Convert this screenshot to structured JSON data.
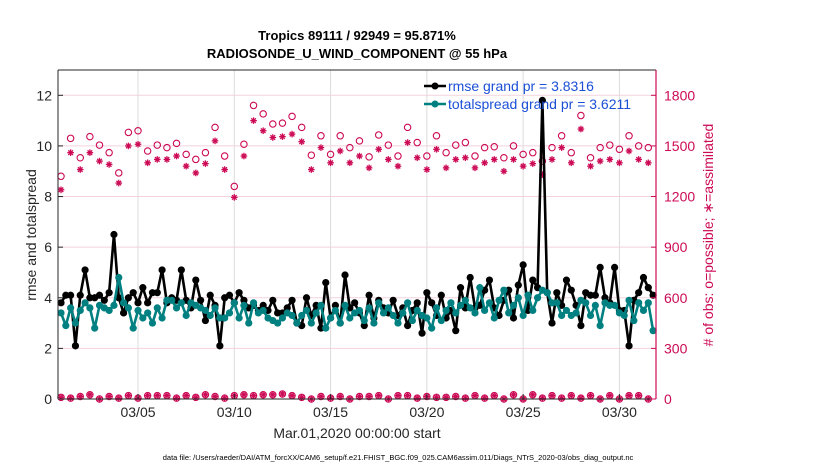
{
  "chart_data": {
    "type": "line",
    "title": "Tropics 89111 / 92949 = 95.871%",
    "subtitle": "RADIOSONDE_U_WIND_COMPONENT @ 55 hPa",
    "xlabel": "Mar.01,2020 00:00:00 start",
    "ylabel": "rmse and totalspread",
    "y2label": "# of obs: o=possible; ∗=assimilated",
    "footer": "data file: /Users/raeder/DAI/ATM_forcXX/CAM6_setup/f.e21.FHIST_BGC.f09_025.CAM6assim.011/Diags_NTrS_2020-03/obs_diag_output.nc",
    "x_start": "2020-03-01T00:00:00",
    "x_step_hours": 6,
    "xlim_days": [
      0,
      30.9
    ],
    "x_ticks": [
      {
        "day": 4,
        "label": "03/05"
      },
      {
        "day": 9,
        "label": "03/10"
      },
      {
        "day": 14,
        "label": "03/15"
      },
      {
        "day": 19,
        "label": "03/20"
      },
      {
        "day": 24,
        "label": "03/25"
      },
      {
        "day": 29,
        "label": "03/30"
      }
    ],
    "ylim": [
      0,
      13
    ],
    "y_ticks": [
      0,
      2,
      4,
      6,
      8,
      10,
      12
    ],
    "y2lim": [
      0,
      1950
    ],
    "y2_ticks": [
      0,
      300,
      600,
      900,
      1200,
      1500,
      1800
    ],
    "grid": true,
    "legend_position": "top-right",
    "legend": [
      {
        "name": "rmse grand pr = 3.8316",
        "color": "#000000"
      },
      {
        "name": "totalspread grand pr = 3.6211",
        "color": "#008080"
      }
    ],
    "series": [
      {
        "name": "rmse",
        "axis": "left",
        "color": "#000000",
        "values": [
          3.8,
          4.1,
          4.1,
          2.1,
          4.1,
          5.1,
          4.0,
          4.0,
          4.1,
          3.9,
          4.2,
          6.5,
          4.0,
          3.4,
          4.0,
          4.2,
          3.8,
          4.4,
          3.8,
          4.2,
          4.2,
          5.1,
          3.8,
          4.0,
          3.9,
          5.1,
          3.9,
          3.6,
          4.7,
          3.9,
          3.1,
          4.1,
          3.7,
          2.1,
          4.0,
          4.1,
          3.8,
          4.2,
          3.9,
          3.6,
          3.7,
          3.5,
          3.7,
          3.5,
          3.9,
          3.4,
          3.4,
          3.6,
          3.9,
          3.0,
          2.9,
          4.0,
          3.3,
          3.7,
          2.8,
          4.6,
          3.2,
          3.7,
          3.0,
          4.9,
          3.6,
          3.8,
          3.4,
          2.9,
          4.1,
          3.2,
          3.9,
          3.6,
          3.4,
          3.9,
          3.3,
          3.6,
          2.9,
          3.5,
          3.8,
          2.6,
          4.2,
          3.8,
          3.3,
          4.1,
          3.2,
          3.5,
          2.7,
          4.4,
          3.6,
          4.8,
          3.6,
          3.7,
          4.3,
          4.7,
          3.6,
          3.3,
          3.9,
          4.3,
          3.2,
          4.5,
          5.3,
          3.5,
          4.7,
          4.4,
          11.8,
          4.2,
          3.0,
          4.2,
          3.7,
          4.7,
          4.3,
          3.7,
          2.9,
          4.2,
          4.1,
          4.1,
          5.2,
          4.0,
          3.8,
          5.2,
          3.5,
          3.5,
          2.1,
          3.9,
          4.2,
          4.8,
          4.4,
          4.1
        ]
      },
      {
        "name": "totalspread",
        "axis": "left",
        "color": "#008080",
        "values": [
          3.4,
          2.9,
          3.6,
          3.0,
          3.5,
          3.8,
          3.6,
          2.8,
          3.7,
          3.6,
          3.5,
          3.7,
          4.8,
          3.8,
          3.6,
          2.8,
          3.5,
          3.2,
          3.4,
          3.0,
          3.6,
          3.2,
          3.9,
          3.9,
          3.6,
          3.8,
          3.3,
          3.8,
          3.7,
          3.6,
          3.5,
          3.3,
          3.6,
          3.2,
          3.2,
          3.4,
          3.8,
          3.2,
          3.7,
          3.0,
          3.8,
          3.4,
          3.5,
          3.2,
          3.1,
          3.0,
          3.2,
          3.4,
          3.3,
          3.0,
          3.3,
          3.5,
          3.0,
          3.4,
          3.7,
          2.8,
          3.2,
          3.5,
          3.0,
          3.7,
          3.2,
          3.4,
          3.5,
          3.1,
          3.6,
          3.0,
          3.8,
          3.4,
          3.6,
          3.3,
          3.0,
          3.4,
          3.8,
          3.1,
          3.5,
          3.3,
          3.2,
          2.8,
          3.6,
          3.1,
          3.5,
          3.8,
          3.4,
          3.7,
          3.9,
          3.6,
          3.4,
          4.4,
          3.5,
          3.8,
          3.2,
          3.9,
          4.3,
          3.4,
          3.7,
          4.0,
          3.3,
          4.1,
          3.5,
          4.0,
          4.3,
          4.2,
          3.8,
          3.8,
          3.3,
          3.5,
          3.3,
          3.4,
          3.9,
          3.8,
          3.3,
          3.7,
          2.9,
          3.8,
          3.7,
          3.7,
          3.4,
          3.3,
          3.9,
          3.1,
          3.8,
          3.5,
          3.8,
          2.7
        ]
      },
      {
        "name": "obs possible",
        "axis": "right",
        "marker": "circle",
        "color": "#cc0a55",
        "days": [
          0.0,
          0.5,
          1.0,
          1.5,
          2.0,
          2.5,
          3.0,
          3.5,
          4.0,
          4.5,
          5.0,
          5.5,
          6.0,
          6.5,
          7.0,
          7.5,
          8.0,
          8.5,
          9.0,
          9.5,
          10.0,
          10.5,
          11.0,
          11.5,
          12.0,
          12.5,
          13.0,
          13.5,
          14.0,
          14.5,
          15.0,
          15.5,
          16.0,
          16.5,
          17.0,
          17.5,
          18.0,
          18.5,
          19.0,
          19.5,
          20.0,
          20.5,
          21.0,
          21.5,
          22.0,
          22.5,
          23.0,
          23.5,
          24.0,
          24.5,
          25.0,
          25.5,
          26.0,
          26.5,
          27.0,
          27.5,
          28.0,
          28.5,
          29.0,
          29.5,
          30.0,
          30.5
        ],
        "values": [
          1320,
          1545,
          1430,
          1555,
          1505,
          1460,
          1340,
          1580,
          1590,
          1470,
          1505,
          1490,
          1515,
          1450,
          1420,
          1460,
          1610,
          1440,
          1260,
          1510,
          1740,
          1690,
          1630,
          1635,
          1675,
          1610,
          1445,
          1560,
          1450,
          1560,
          1490,
          1530,
          1435,
          1565,
          1505,
          1440,
          1610,
          1520,
          1440,
          1560,
          1460,
          1505,
          1520,
          1440,
          1490,
          1495,
          1430,
          1500,
          1450,
          1460,
          1410,
          1490,
          1560,
          1460,
          1680,
          1430,
          1490,
          1505,
          1480,
          1560,
          1500,
          1490
        ]
      },
      {
        "name": "obs assimilated",
        "axis": "right",
        "marker": "asterisk",
        "color": "#cc0a55",
        "days": [
          0.0,
          0.5,
          1.0,
          1.5,
          2.0,
          2.5,
          3.0,
          3.5,
          4.0,
          4.5,
          5.0,
          5.5,
          6.0,
          6.5,
          7.0,
          7.5,
          8.0,
          8.5,
          9.0,
          9.5,
          10.0,
          10.5,
          11.0,
          11.5,
          12.0,
          12.5,
          13.0,
          13.5,
          14.0,
          14.5,
          15.0,
          15.5,
          16.0,
          16.5,
          17.0,
          17.5,
          18.0,
          18.5,
          19.0,
          19.5,
          20.0,
          20.5,
          21.0,
          21.5,
          22.0,
          22.5,
          23.0,
          23.5,
          24.0,
          24.5,
          25.0,
          25.5,
          26.0,
          26.5,
          27.0,
          27.5,
          28.0,
          28.5,
          29.0,
          29.5,
          30.0,
          30.5
        ],
        "values": [
          1240,
          1460,
          1360,
          1460,
          1410,
          1390,
          1280,
          1500,
          1510,
          1400,
          1420,
          1420,
          1440,
          1380,
          1340,
          1395,
          1530,
          1360,
          1195,
          1440,
          1650,
          1590,
          1550,
          1555,
          1570,
          1525,
          1360,
          1490,
          1400,
          1470,
          1400,
          1440,
          1370,
          1480,
          1420,
          1380,
          1520,
          1430,
          1360,
          1480,
          1370,
          1420,
          1430,
          1370,
          1400,
          1420,
          1350,
          1420,
          1380,
          1395,
          1330,
          1420,
          1490,
          1400,
          1600,
          1380,
          1410,
          1420,
          1400,
          1470,
          1420,
          1400
        ]
      },
      {
        "name": "obs possible (low)",
        "axis": "right",
        "marker": "circle",
        "color": "#cc0a55",
        "values": [
          10,
          5,
          15,
          25,
          0,
          15,
          5,
          20,
          5,
          20,
          20,
          20,
          5,
          20,
          10,
          25,
          15,
          5,
          20,
          25,
          20,
          25,
          25,
          30,
          20,
          10,
          0,
          15,
          5,
          15,
          0,
          15,
          15,
          20,
          0,
          20,
          20,
          5,
          15,
          10,
          10,
          15,
          5,
          20,
          5,
          20,
          0,
          25,
          0,
          25,
          5,
          20,
          5,
          20,
          5,
          20,
          0,
          20,
          0,
          20,
          20,
          -5
        ]
      },
      {
        "name": "obs assimilated (low)",
        "axis": "right",
        "marker": "asterisk",
        "color": "#cc0a55",
        "values": [
          10,
          5,
          15,
          25,
          0,
          15,
          5,
          20,
          5,
          20,
          20,
          20,
          5,
          20,
          10,
          25,
          15,
          5,
          20,
          25,
          20,
          25,
          25,
          30,
          20,
          10,
          0,
          15,
          5,
          15,
          0,
          15,
          15,
          20,
          0,
          20,
          20,
          5,
          15,
          10,
          10,
          15,
          5,
          20,
          5,
          20,
          0,
          25,
          0,
          25,
          5,
          20,
          5,
          20,
          5,
          20,
          0,
          20,
          0,
          20,
          20,
          -5
        ]
      }
    ]
  }
}
